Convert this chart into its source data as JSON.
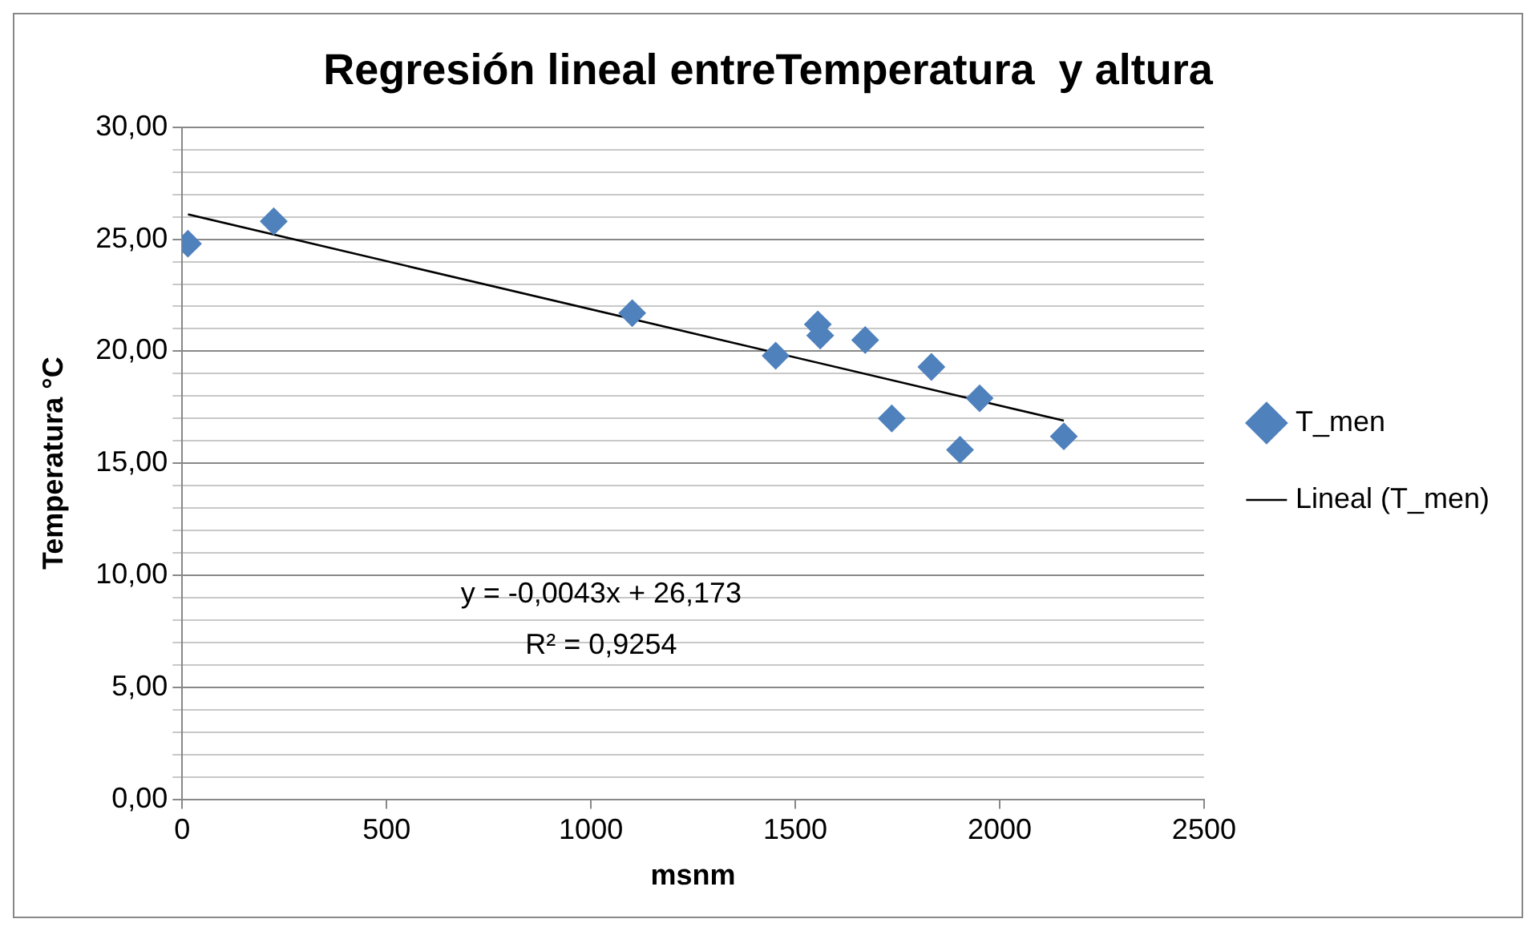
{
  "chart_data": {
    "type": "scatter",
    "title": "Regresión lineal entreTemperatura  y altura",
    "xlabel": "msnm",
    "ylabel": "Temperatura °C",
    "series": [
      {
        "name": "T_men",
        "type": "scatter",
        "marker": "diamond",
        "color": "#4f81bd",
        "x": [
          14,
          224,
          1101,
          1452,
          1555,
          1561,
          1671,
          1736,
          1833,
          1951,
          1903,
          2157
        ],
        "values": [
          24.8,
          25.8,
          21.7,
          19.8,
          21.2,
          20.7,
          20.5,
          17.0,
          19.3,
          17.9,
          15.6,
          16.2
        ]
      },
      {
        "name": "Lineal (T_men)",
        "type": "line",
        "marker": "none",
        "color": "#000000",
        "x": [
          14,
          2157
        ],
        "values": [
          26.11,
          16.9
        ]
      }
    ],
    "xlim": [
      0,
      2500
    ],
    "xticks": [
      0,
      500,
      1000,
      1500,
      2000,
      2500
    ],
    "ylim": [
      0,
      30
    ],
    "yticks": [
      {
        "value": 0,
        "label": "0,00"
      },
      {
        "value": 1,
        "label": null
      },
      {
        "value": 2,
        "label": null
      },
      {
        "value": 3,
        "label": null
      },
      {
        "value": 4,
        "label": null
      },
      {
        "value": 5,
        "label": "5,00"
      },
      {
        "value": 6,
        "label": null
      },
      {
        "value": 7,
        "label": null
      },
      {
        "value": 8,
        "label": null
      },
      {
        "value": 9,
        "label": null
      },
      {
        "value": 10,
        "label": "10,00"
      },
      {
        "value": 11,
        "label": null
      },
      {
        "value": 12,
        "label": null
      },
      {
        "value": 13,
        "label": null
      },
      {
        "value": 14,
        "label": null
      },
      {
        "value": 15,
        "label": "15,00"
      },
      {
        "value": 16,
        "label": null
      },
      {
        "value": 17,
        "label": null
      },
      {
        "value": 18,
        "label": null
      },
      {
        "value": 19,
        "label": null
      },
      {
        "value": 20,
        "label": "20,00"
      },
      {
        "value": 21,
        "label": null
      },
      {
        "value": 22,
        "label": null
      },
      {
        "value": 23,
        "label": null
      },
      {
        "value": 24,
        "label": null
      },
      {
        "value": 25,
        "label": "25,00"
      },
      {
        "value": 26,
        "label": null
      },
      {
        "value": 27,
        "label": null
      },
      {
        "value": 28,
        "label": null
      },
      {
        "value": 29,
        "label": null
      },
      {
        "value": 30,
        "label": "30,00"
      }
    ],
    "grid": "y",
    "legend": "right",
    "annotations": [
      "y = -0,0043x + 26,173",
      "R² = 0,9254"
    ]
  }
}
